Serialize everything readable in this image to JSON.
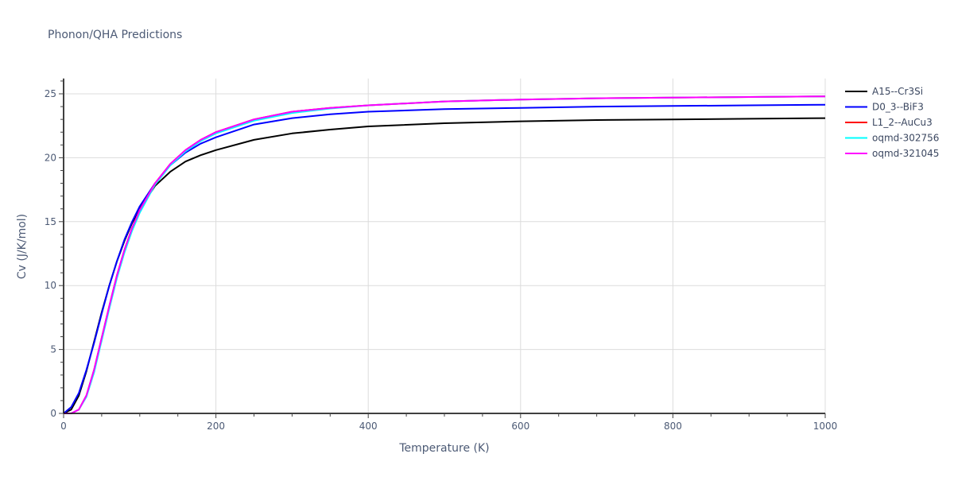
{
  "title": "Phonon/QHA Predictions",
  "chart_data": {
    "type": "line",
    "title": "Phonon/QHA Predictions",
    "xlabel": "Temperature (K)",
    "ylabel": "Cv (J/K/mol)",
    "xlim": [
      0,
      1000
    ],
    "ylim": [
      0,
      26.2
    ],
    "xticks": [
      0,
      200,
      400,
      600,
      800,
      1000
    ],
    "yticks": [
      0,
      5,
      10,
      15,
      20,
      25
    ],
    "grid": true,
    "legend_position": "right",
    "x": [
      0,
      10,
      20,
      30,
      40,
      50,
      60,
      70,
      80,
      90,
      100,
      120,
      140,
      160,
      180,
      200,
      250,
      300,
      350,
      400,
      500,
      600,
      700,
      800,
      900,
      1000
    ],
    "series": [
      {
        "name": "A15--Cr3Si",
        "color": "#000000",
        "values": [
          0,
          0.3,
          1.4,
          3.3,
          5.6,
          7.9,
          10.0,
          11.9,
          13.5,
          14.9,
          16.0,
          17.8,
          18.9,
          19.7,
          20.2,
          20.6,
          21.4,
          21.9,
          22.2,
          22.45,
          22.7,
          22.85,
          22.95,
          23.0,
          23.05,
          23.1
        ]
      },
      {
        "name": "D0_3--BiF3",
        "color": "#0000ff",
        "values": [
          0,
          0.5,
          1.6,
          3.4,
          5.5,
          7.8,
          10.0,
          11.9,
          13.6,
          15.0,
          16.2,
          18.0,
          19.4,
          20.4,
          21.1,
          21.6,
          22.6,
          23.1,
          23.4,
          23.6,
          23.8,
          23.9,
          24.0,
          24.05,
          24.1,
          24.15
        ]
      },
      {
        "name": "L1_2--AuCu3",
        "color": "#ff0000",
        "values": [
          0,
          0.0,
          0.3,
          1.4,
          3.4,
          5.9,
          8.4,
          10.8,
          12.8,
          14.5,
          15.9,
          18.0,
          19.5,
          20.6,
          21.4,
          22.0,
          23.0,
          23.6,
          23.9,
          24.1,
          24.4,
          24.55,
          24.65,
          24.7,
          24.75,
          24.8
        ]
      },
      {
        "name": "oqmd-302756",
        "color": "#00ffff",
        "values": [
          0,
          0.0,
          0.3,
          1.3,
          3.2,
          5.7,
          8.2,
          10.6,
          12.6,
          14.3,
          15.7,
          17.9,
          19.4,
          20.5,
          21.3,
          21.9,
          22.9,
          23.5,
          23.85,
          24.1,
          24.4,
          24.55,
          24.65,
          24.7,
          24.75,
          24.8
        ]
      },
      {
        "name": "oqmd-321045",
        "color": "#ff00ff",
        "values": [
          0,
          0.0,
          0.3,
          1.4,
          3.4,
          5.9,
          8.4,
          10.8,
          12.8,
          14.5,
          15.9,
          18.0,
          19.5,
          20.6,
          21.4,
          22.0,
          23.0,
          23.6,
          23.9,
          24.1,
          24.4,
          24.55,
          24.65,
          24.7,
          24.75,
          24.8
        ]
      }
    ]
  }
}
